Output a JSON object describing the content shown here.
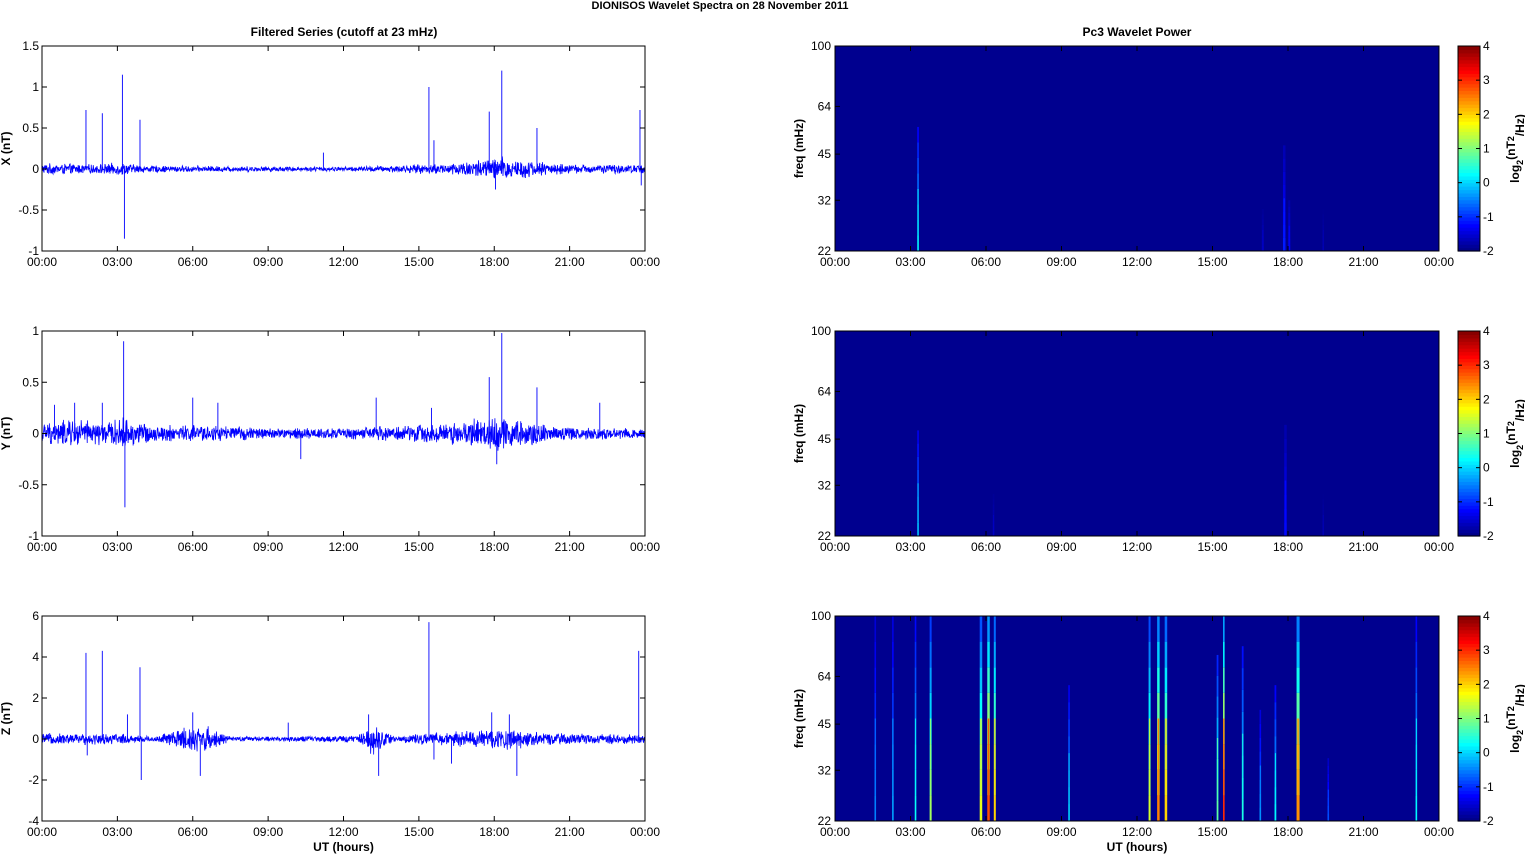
{
  "figure": {
    "title": "DIONISOS Wavelet Spectra on 28 November  2011",
    "left_column_title": "Filtered Series (cutoff at 23 mHz)",
    "right_column_title": "Pc3 Wavelet Power",
    "x_axis_label": "UT (hours)",
    "x_tick_labels": [
      "00:00",
      "03:00",
      "06:00",
      "09:00",
      "12:00",
      "15:00",
      "18:00",
      "21:00",
      "00:00"
    ],
    "freq_axis_label": "freq (mHz)",
    "colorbar_label": "log2(nT2/Hz)",
    "colorbar_label_parts": [
      "log",
      "2",
      "(nT",
      "2",
      "/Hz)"
    ],
    "colors": {
      "trace": "#0000ff",
      "spectrogram_background": "#00008f"
    }
  },
  "chart_data": [
    {
      "type": "line",
      "title": "Filtered Series (cutoff at 23 mHz)",
      "component": "X",
      "ylabel": "X (nT)",
      "xlabel": "",
      "x_range_hours": [
        0,
        24
      ],
      "ylim": [
        -1,
        1.5
      ],
      "yticks": [
        -1,
        -0.5,
        0,
        0.5,
        1,
        1.5
      ],
      "ytick_labels": [
        "-1",
        "-0.5",
        "0",
        "0.5",
        "1",
        "1.5"
      ],
      "noise_envelope": [
        {
          "t": 0,
          "a": 0.06
        },
        {
          "t": 1,
          "a": 0.06
        },
        {
          "t": 2,
          "a": 0.05
        },
        {
          "t": 3.2,
          "a": 0.07
        },
        {
          "t": 4,
          "a": 0.04
        },
        {
          "t": 6,
          "a": 0.035
        },
        {
          "t": 9,
          "a": 0.03
        },
        {
          "t": 12,
          "a": 0.025
        },
        {
          "t": 14,
          "a": 0.04
        },
        {
          "t": 16,
          "a": 0.06
        },
        {
          "t": 17.5,
          "a": 0.11
        },
        {
          "t": 18.3,
          "a": 0.14
        },
        {
          "t": 19.5,
          "a": 0.09
        },
        {
          "t": 21,
          "a": 0.05
        },
        {
          "t": 24,
          "a": 0.05
        }
      ],
      "spikes": [
        {
          "t": 1.75,
          "v": 0.72
        },
        {
          "t": 2.4,
          "v": 0.68
        },
        {
          "t": 3.2,
          "v": 1.15
        },
        {
          "t": 3.28,
          "v": -0.85
        },
        {
          "t": 3.9,
          "v": 0.6
        },
        {
          "t": 11.2,
          "v": 0.2
        },
        {
          "t": 15.4,
          "v": 1.0
        },
        {
          "t": 15.6,
          "v": 0.35
        },
        {
          "t": 17.8,
          "v": 0.7
        },
        {
          "t": 18.3,
          "v": 1.2
        },
        {
          "t": 18.05,
          "v": -0.25
        },
        {
          "t": 19.7,
          "v": 0.5
        },
        {
          "t": 23.8,
          "v": 0.72
        },
        {
          "t": 23.85,
          "v": -0.2
        }
      ]
    },
    {
      "type": "line",
      "title": "",
      "component": "Y",
      "ylabel": "Y (nT)",
      "xlabel": "",
      "x_range_hours": [
        0,
        24
      ],
      "ylim": [
        -1,
        1
      ],
      "yticks": [
        -1,
        -0.5,
        0,
        0.5,
        1
      ],
      "ytick_labels": [
        "-1",
        "-0.5",
        "0",
        "0.5",
        "1"
      ],
      "noise_envelope": [
        {
          "t": 0,
          "a": 0.09
        },
        {
          "t": 1.2,
          "a": 0.13
        },
        {
          "t": 2.5,
          "a": 0.1
        },
        {
          "t": 3.3,
          "a": 0.14
        },
        {
          "t": 4.5,
          "a": 0.07
        },
        {
          "t": 6,
          "a": 0.08
        },
        {
          "t": 9,
          "a": 0.05
        },
        {
          "t": 12,
          "a": 0.05
        },
        {
          "t": 14,
          "a": 0.07
        },
        {
          "t": 16,
          "a": 0.09
        },
        {
          "t": 17.5,
          "a": 0.14
        },
        {
          "t": 18.3,
          "a": 0.17
        },
        {
          "t": 19.5,
          "a": 0.1
        },
        {
          "t": 21,
          "a": 0.06
        },
        {
          "t": 24,
          "a": 0.05
        }
      ],
      "spikes": [
        {
          "t": 0.5,
          "v": 0.28
        },
        {
          "t": 1.3,
          "v": 0.3
        },
        {
          "t": 2.4,
          "v": 0.3
        },
        {
          "t": 3.25,
          "v": 0.9
        },
        {
          "t": 3.3,
          "v": -0.72
        },
        {
          "t": 6.0,
          "v": 0.35
        },
        {
          "t": 7.0,
          "v": 0.3
        },
        {
          "t": 10.3,
          "v": -0.25
        },
        {
          "t": 13.3,
          "v": 0.35
        },
        {
          "t": 15.5,
          "v": 0.25
        },
        {
          "t": 17.8,
          "v": 0.55
        },
        {
          "t": 18.3,
          "v": 0.98
        },
        {
          "t": 18.1,
          "v": -0.3
        },
        {
          "t": 19.7,
          "v": 0.45
        },
        {
          "t": 22.2,
          "v": 0.3
        }
      ]
    },
    {
      "type": "line",
      "title": "",
      "component": "Z",
      "ylabel": "Z (nT)",
      "xlabel": "UT (hours)",
      "x_range_hours": [
        0,
        24
      ],
      "ylim": [
        -4,
        6
      ],
      "yticks": [
        -4,
        -2,
        0,
        2,
        4,
        6
      ],
      "ytick_labels": [
        "-4",
        "-2",
        "0",
        "2",
        "4",
        "6"
      ],
      "noise_envelope": [
        {
          "t": 0,
          "a": 0.25
        },
        {
          "t": 3,
          "a": 0.25
        },
        {
          "t": 4.5,
          "a": 0.12
        },
        {
          "t": 5.8,
          "a": 0.6
        },
        {
          "t": 6.5,
          "a": 0.6
        },
        {
          "t": 7.5,
          "a": 0.1
        },
        {
          "t": 12.5,
          "a": 0.15
        },
        {
          "t": 13.2,
          "a": 0.7
        },
        {
          "t": 14,
          "a": 0.15
        },
        {
          "t": 16,
          "a": 0.3
        },
        {
          "t": 18.5,
          "a": 0.5
        },
        {
          "t": 20,
          "a": 0.25
        },
        {
          "t": 24,
          "a": 0.2
        }
      ],
      "spikes": [
        {
          "t": 1.75,
          "v": 4.2
        },
        {
          "t": 1.8,
          "v": -0.8
        },
        {
          "t": 2.4,
          "v": 4.3
        },
        {
          "t": 3.4,
          "v": 1.2
        },
        {
          "t": 3.9,
          "v": 3.5
        },
        {
          "t": 3.95,
          "v": -2.0
        },
        {
          "t": 6.0,
          "v": 1.3
        },
        {
          "t": 6.3,
          "v": -1.8
        },
        {
          "t": 9.8,
          "v": 0.8
        },
        {
          "t": 13.0,
          "v": 1.2
        },
        {
          "t": 13.4,
          "v": -1.8
        },
        {
          "t": 15.4,
          "v": 5.7
        },
        {
          "t": 15.6,
          "v": -1.0
        },
        {
          "t": 16.3,
          "v": -1.2
        },
        {
          "t": 17.9,
          "v": 1.3
        },
        {
          "t": 18.6,
          "v": 1.2
        },
        {
          "t": 18.9,
          "v": -1.8
        },
        {
          "t": 23.75,
          "v": 4.3
        }
      ]
    },
    {
      "type": "heatmap",
      "title": "Pc3 Wavelet Power",
      "component": "X",
      "ylabel": "freq (mHz)",
      "xlabel": "",
      "x_range_hours": [
        0,
        24
      ],
      "y_range_mhz": [
        22,
        100
      ],
      "y_scale": "log",
      "yticks": [
        22,
        32,
        45,
        64,
        100
      ],
      "colorbar": {
        "range": [
          -2,
          4
        ],
        "ticks": [
          -2,
          -1,
          0,
          1,
          2,
          3,
          4
        ],
        "colormap": "jet"
      },
      "bursts": [
        {
          "t": 3.3,
          "w": 0.06,
          "fmax": 55,
          "peak": 0.2
        },
        {
          "t": 17.0,
          "w": 0.08,
          "fmax": 30,
          "peak": -1.6
        },
        {
          "t": 17.85,
          "w": 0.1,
          "fmax": 48,
          "peak": -1.1
        },
        {
          "t": 18.05,
          "w": 0.08,
          "fmax": 32,
          "peak": -1.3
        },
        {
          "t": 19.4,
          "w": 0.06,
          "fmax": 30,
          "peak": -1.7
        }
      ]
    },
    {
      "type": "heatmap",
      "title": "",
      "component": "Y",
      "ylabel": "freq (mHz)",
      "xlabel": "",
      "x_range_hours": [
        0,
        24
      ],
      "y_range_mhz": [
        22,
        100
      ],
      "y_scale": "log",
      "yticks": [
        22,
        32,
        45,
        64,
        100
      ],
      "colorbar": {
        "range": [
          -2,
          4
        ],
        "ticks": [
          -2,
          -1,
          0,
          1,
          2,
          3,
          4
        ],
        "colormap": "jet"
      },
      "bursts": [
        {
          "t": 3.3,
          "w": 0.06,
          "fmax": 48,
          "peak": -0.1
        },
        {
          "t": 6.3,
          "w": 0.05,
          "fmax": 30,
          "peak": -1.6
        },
        {
          "t": 17.9,
          "w": 0.1,
          "fmax": 50,
          "peak": -1.2
        },
        {
          "t": 19.4,
          "w": 0.05,
          "fmax": 30,
          "peak": -1.7
        }
      ]
    },
    {
      "type": "heatmap",
      "title": "",
      "component": "Z",
      "ylabel": "freq (mHz)",
      "xlabel": "UT (hours)",
      "x_range_hours": [
        0,
        24
      ],
      "y_range_mhz": [
        22,
        100
      ],
      "y_scale": "log",
      "yticks": [
        22,
        32,
        45,
        64,
        100
      ],
      "colorbar": {
        "range": [
          -2,
          4
        ],
        "ticks": [
          -2,
          -1,
          0,
          1,
          2,
          3,
          4
        ],
        "colormap": "jet"
      },
      "bursts": [
        {
          "t": 1.6,
          "w": 0.06,
          "fmax": 100,
          "peak": -0.5
        },
        {
          "t": 2.3,
          "w": 0.06,
          "fmax": 100,
          "peak": -0.3
        },
        {
          "t": 3.2,
          "w": 0.06,
          "fmax": 100,
          "peak": 0.3
        },
        {
          "t": 3.8,
          "w": 0.08,
          "fmax": 100,
          "peak": 1.2
        },
        {
          "t": 5.8,
          "w": 0.1,
          "fmax": 100,
          "peak": 1.6
        },
        {
          "t": 6.1,
          "w": 0.1,
          "fmax": 100,
          "peak": 2.8
        },
        {
          "t": 6.35,
          "w": 0.08,
          "fmax": 100,
          "peak": 2.0
        },
        {
          "t": 9.3,
          "w": 0.06,
          "fmax": 60,
          "peak": 0.0
        },
        {
          "t": 12.5,
          "w": 0.08,
          "fmax": 100,
          "peak": 1.5
        },
        {
          "t": 12.85,
          "w": 0.1,
          "fmax": 100,
          "peak": 2.5
        },
        {
          "t": 13.15,
          "w": 0.1,
          "fmax": 100,
          "peak": 2.0
        },
        {
          "t": 15.2,
          "w": 0.07,
          "fmax": 75,
          "peak": 0.8
        },
        {
          "t": 15.45,
          "w": 0.06,
          "fmax": 100,
          "peak": 3.0
        },
        {
          "t": 16.2,
          "w": 0.07,
          "fmax": 80,
          "peak": 0.4
        },
        {
          "t": 16.9,
          "w": 0.06,
          "fmax": 50,
          "peak": -0.4
        },
        {
          "t": 17.5,
          "w": 0.07,
          "fmax": 60,
          "peak": 0.2
        },
        {
          "t": 18.4,
          "w": 0.12,
          "fmax": 100,
          "peak": 2.4
        },
        {
          "t": 19.6,
          "w": 0.06,
          "fmax": 35,
          "peak": -0.8
        },
        {
          "t": 23.1,
          "w": 0.06,
          "fmax": 100,
          "peak": 0.2
        }
      ]
    }
  ]
}
